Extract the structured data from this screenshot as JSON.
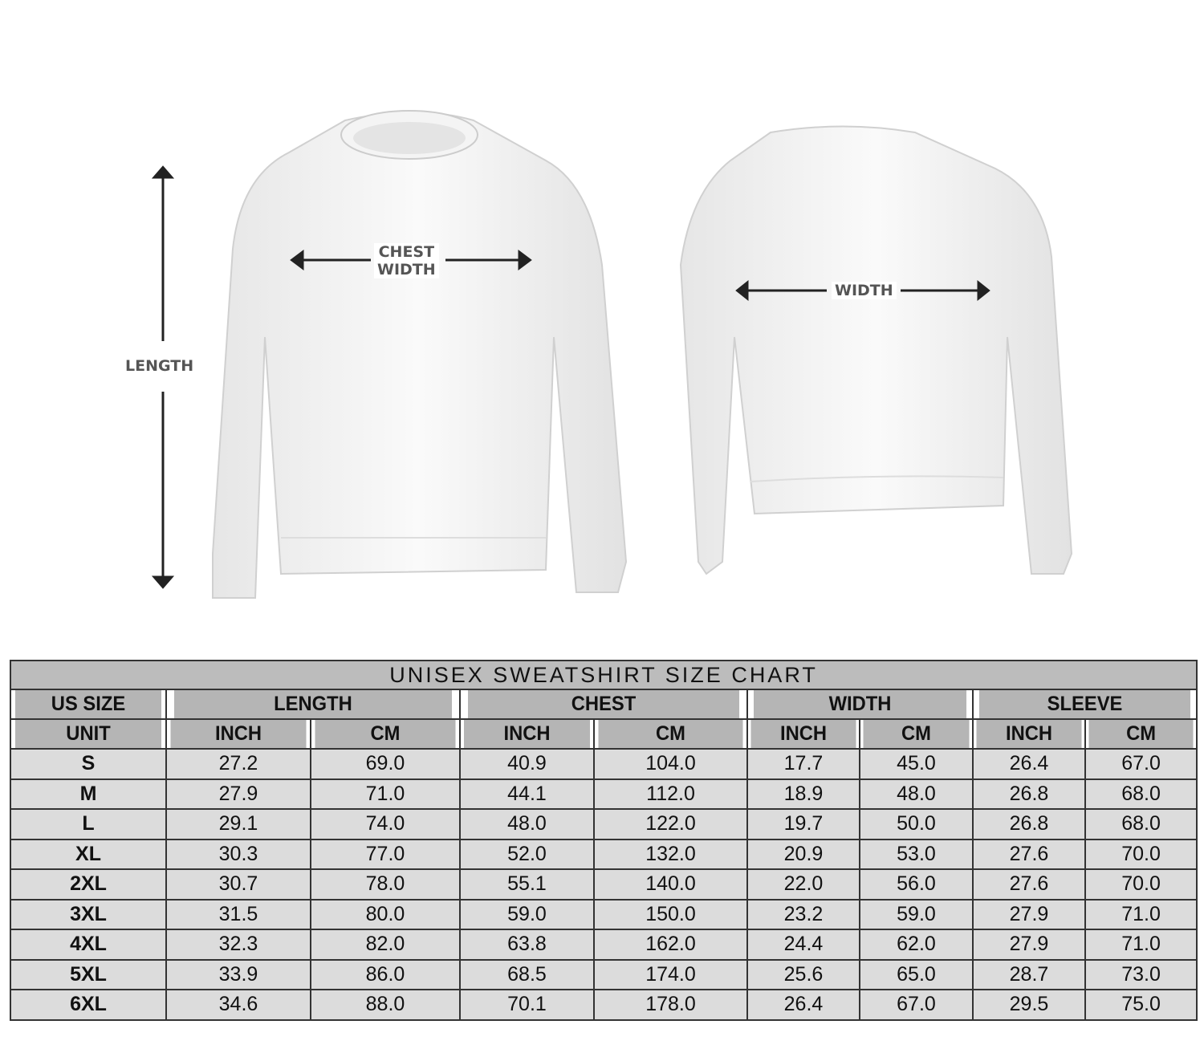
{
  "illustration": {
    "front_labels": {
      "length": "LENGTH",
      "chest_width_line1": "CHEST",
      "chest_width_line2": "WIDTH"
    },
    "back_labels": {
      "width": "WIDTH"
    }
  },
  "table": {
    "title": "UNISEX SWEATSHIRT SIZE CHART",
    "size_header": "US SIZE",
    "unit_header": "UNIT",
    "groups": [
      "LENGTH",
      "CHEST",
      "WIDTH",
      "SLEEVE"
    ],
    "units": [
      "INCH",
      "CM",
      "INCH",
      "CM",
      "INCH",
      "CM",
      "INCH",
      "CM"
    ],
    "rows": [
      [
        "S",
        "27.2",
        "69.0",
        "40.9",
        "104.0",
        "17.7",
        "45.0",
        "26.4",
        "67.0"
      ],
      [
        "M",
        "27.9",
        "71.0",
        "44.1",
        "112.0",
        "18.9",
        "48.0",
        "26.8",
        "68.0"
      ],
      [
        "L",
        "29.1",
        "74.0",
        "48.0",
        "122.0",
        "19.7",
        "50.0",
        "26.8",
        "68.0"
      ],
      [
        "XL",
        "30.3",
        "77.0",
        "52.0",
        "132.0",
        "20.9",
        "53.0",
        "27.6",
        "70.0"
      ],
      [
        "2XL",
        "30.7",
        "78.0",
        "55.1",
        "140.0",
        "22.0",
        "56.0",
        "27.6",
        "70.0"
      ],
      [
        "3XL",
        "31.5",
        "80.0",
        "59.0",
        "150.0",
        "23.2",
        "59.0",
        "27.9",
        "71.0"
      ],
      [
        "4XL",
        "32.3",
        "82.0",
        "63.8",
        "162.0",
        "24.4",
        "62.0",
        "27.9",
        "71.0"
      ],
      [
        "5XL",
        "33.9",
        "86.0",
        "68.5",
        "174.0",
        "25.6",
        "65.0",
        "28.7",
        "73.0"
      ],
      [
        "6XL",
        "34.6",
        "88.0",
        "70.1",
        "178.0",
        "26.4",
        "67.0",
        "29.5",
        "75.0"
      ]
    ]
  },
  "colors": {
    "header_bg": "#b5b5b5",
    "row_bg": "#dcdcdc",
    "border": "#333333",
    "arrow": "#222222"
  }
}
